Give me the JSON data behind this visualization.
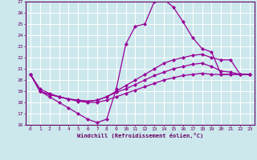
{
  "xlabel": "Windchill (Refroidissement éolien,°C)",
  "bg_color": "#cce8ec",
  "line_color": "#990099",
  "grid_color": "#ffffff",
  "xlim": [
    -0.5,
    23.5
  ],
  "ylim": [
    16,
    27
  ],
  "yticks": [
    16,
    17,
    18,
    19,
    20,
    21,
    22,
    23,
    24,
    25,
    26,
    27
  ],
  "xticks": [
    0,
    1,
    2,
    3,
    4,
    5,
    6,
    7,
    8,
    9,
    10,
    11,
    12,
    13,
    14,
    15,
    16,
    17,
    18,
    19,
    20,
    21,
    22,
    23
  ],
  "lines": [
    {
      "x": [
        0,
        1,
        2,
        3,
        4,
        5,
        6,
        7,
        8,
        9,
        10,
        11,
        12,
        13,
        14,
        15,
        16,
        17,
        18,
        19,
        20,
        21,
        22,
        23
      ],
      "y": [
        20.5,
        19.0,
        18.5,
        18.0,
        17.5,
        17.0,
        16.5,
        16.2,
        16.5,
        19.2,
        23.2,
        24.8,
        25.0,
        27.0,
        27.2,
        26.5,
        25.2,
        23.8,
        22.8,
        22.5,
        20.5,
        20.5,
        20.5,
        20.5
      ]
    },
    {
      "x": [
        0,
        1,
        2,
        3,
        4,
        5,
        6,
        7,
        8,
        9,
        10,
        11,
        12,
        13,
        14,
        15,
        16,
        17,
        18,
        19,
        20,
        21,
        22,
        23
      ],
      "y": [
        20.5,
        19.2,
        18.8,
        18.5,
        18.3,
        18.2,
        18.1,
        18.2,
        18.5,
        19.0,
        19.5,
        20.0,
        20.5,
        21.0,
        21.5,
        21.8,
        22.0,
        22.2,
        22.3,
        22.0,
        21.8,
        21.8,
        20.5,
        20.5
      ]
    },
    {
      "x": [
        0,
        1,
        2,
        3,
        4,
        5,
        6,
        7,
        8,
        9,
        10,
        11,
        12,
        13,
        14,
        15,
        16,
        17,
        18,
        19,
        20,
        21,
        22,
        23
      ],
      "y": [
        20.5,
        19.0,
        18.7,
        18.5,
        18.3,
        18.1,
        18.0,
        18.0,
        18.2,
        18.5,
        18.8,
        19.1,
        19.4,
        19.7,
        20.0,
        20.2,
        20.4,
        20.5,
        20.6,
        20.5,
        20.5,
        20.5,
        20.5,
        20.5
      ]
    },
    {
      "x": [
        0,
        1,
        2,
        3,
        4,
        5,
        6,
        7,
        8,
        9,
        10,
        11,
        12,
        13,
        14,
        15,
        16,
        17,
        18,
        19,
        20,
        21,
        22,
        23
      ],
      "y": [
        20.5,
        19.0,
        18.7,
        18.5,
        18.3,
        18.2,
        18.1,
        18.2,
        18.5,
        18.9,
        19.2,
        19.6,
        20.0,
        20.4,
        20.7,
        21.0,
        21.2,
        21.4,
        21.5,
        21.2,
        20.8,
        20.7,
        20.5,
        20.5
      ]
    }
  ]
}
